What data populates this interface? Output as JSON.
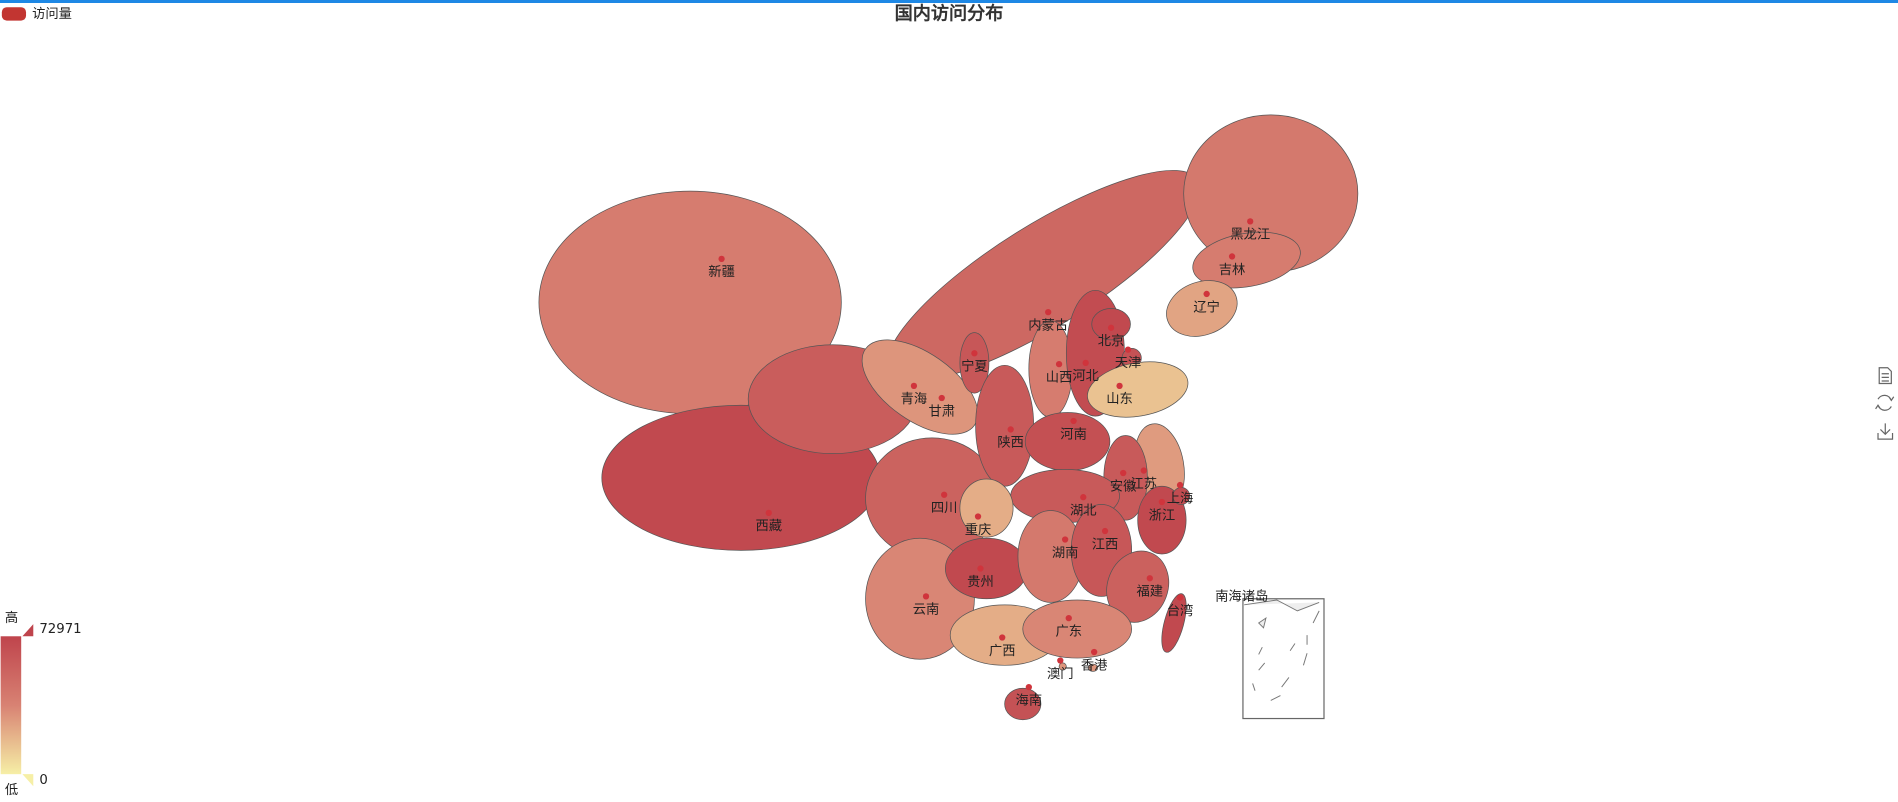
{
  "title": "国内访问分布",
  "legend": "访问量",
  "visual_map": {
    "min": 0,
    "max": 72971,
    "high_text": "高",
    "low_text": "低",
    "colors": [
      "#f6efa6",
      "#d88273",
      "#bf444c"
    ]
  },
  "inset_label": "南海诸岛",
  "regions": [
    {
      "name": "新疆",
      "value": 40000
    },
    {
      "name": "内蒙古",
      "value": 52000
    },
    {
      "name": "黑龙江",
      "value": 42000
    },
    {
      "name": "吉林",
      "value": 40000
    },
    {
      "name": "辽宁",
      "value": 25000
    },
    {
      "name": "西藏",
      "value": 70000
    },
    {
      "name": "青海",
      "value": 58000
    },
    {
      "name": "甘肃",
      "value": 30000
    },
    {
      "name": "四川",
      "value": 55000
    },
    {
      "name": "云南",
      "value": 35000
    },
    {
      "name": "宁夏",
      "value": 62000
    },
    {
      "name": "陕西",
      "value": 60000
    },
    {
      "name": "山西",
      "value": 40000
    },
    {
      "name": "河北",
      "value": 68000
    },
    {
      "name": "北京",
      "value": 70000
    },
    {
      "name": "天津",
      "value": 65000
    },
    {
      "name": "山东",
      "value": 15000
    },
    {
      "name": "河南",
      "value": 66000
    },
    {
      "name": "江苏",
      "value": 28000
    },
    {
      "name": "安徽",
      "value": 60000
    },
    {
      "name": "湖北",
      "value": 60000
    },
    {
      "name": "重庆",
      "value": 22000
    },
    {
      "name": "贵州",
      "value": 70000
    },
    {
      "name": "湖南",
      "value": 42000
    },
    {
      "name": "江西",
      "value": 62000
    },
    {
      "name": "浙江",
      "value": 70000
    },
    {
      "name": "上海",
      "value": 68000
    },
    {
      "name": "福建",
      "value": 56000
    },
    {
      "name": "广西",
      "value": 22000
    },
    {
      "name": "广东",
      "value": 35000
    },
    {
      "name": "海南",
      "value": 65000
    },
    {
      "name": "台湾",
      "value": 70000
    },
    {
      "name": "香港",
      "value": 30000
    },
    {
      "name": "澳门",
      "value": 30000
    }
  ]
}
